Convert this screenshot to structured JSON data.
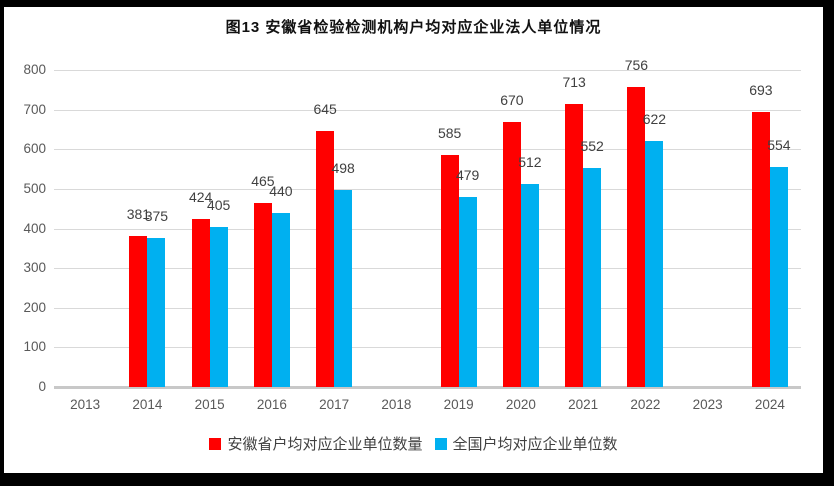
{
  "chart_data": {
    "type": "bar",
    "title": "图13 安徽省检验检测机构户均对应企业法人单位情况",
    "categories": [
      "2013",
      "2014",
      "2015",
      "2016",
      "2017",
      "2018",
      "2019",
      "2020",
      "2021",
      "2022",
      "2023",
      "2024"
    ],
    "series": [
      {
        "name": "安徽省户均对应企业单位数量",
        "color": "#ff0000",
        "values": [
          null,
          381,
          424,
          465,
          645,
          null,
          585,
          670,
          713,
          756,
          null,
          693
        ]
      },
      {
        "name": "全国户均对应企业单位数",
        "color": "#00b0f0",
        "values": [
          null,
          375,
          405,
          440,
          498,
          null,
          479,
          512,
          552,
          622,
          null,
          554
        ]
      }
    ],
    "ylim": [
      0,
      800
    ],
    "ytick_interval": 100,
    "yticks": [
      0,
      100,
      200,
      300,
      400,
      500,
      600,
      700,
      800
    ],
    "grid": true,
    "data_labels": true,
    "legend_position": "bottom",
    "frame_color": "#000000",
    "gridline_color": "#d9d9d9",
    "axis_text_color": "#595959",
    "data_label_color": "#404040"
  }
}
